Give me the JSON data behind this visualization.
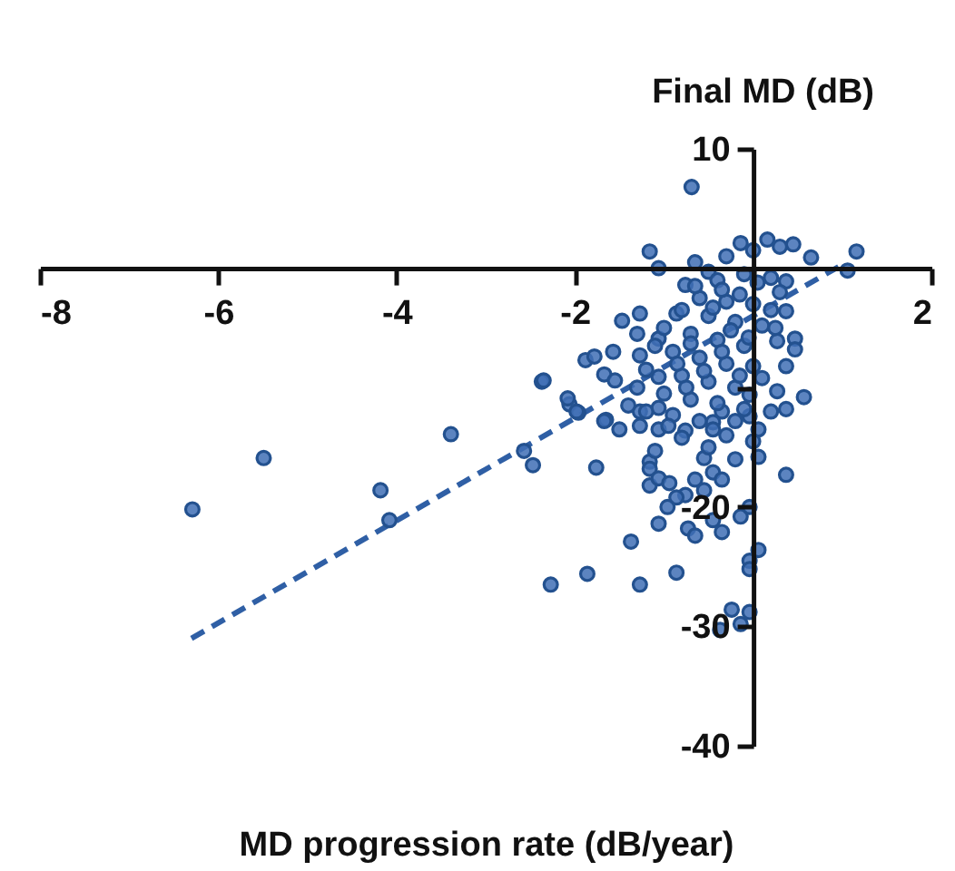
{
  "chart_data": {
    "type": "scatter",
    "xlabel": "MD progression rate (dB/year)",
    "ylabel": "Final MD (dB)",
    "xlim": [
      -8,
      2
    ],
    "ylim": [
      -40,
      10
    ],
    "xticks": [
      -8,
      -6,
      -4,
      -2,
      {
        "value": 0,
        "label": null
      },
      2
    ],
    "yticks": [
      -40,
      -30,
      -20,
      {
        "value": -10,
        "label": null
      },
      {
        "value": 0,
        "label": null
      },
      10
    ],
    "marker": "circle",
    "grid": false,
    "legend": false,
    "series": [
      {
        "color": "#3f6fb5",
        "x": [
          -6.29,
          -5.49,
          -4.18,
          -4.08,
          -3.39,
          -2.57,
          -2.47,
          -2.37,
          -2.27,
          -1.86,
          -1.76,
          -2.06,
          -1.96,
          -1.65,
          -0.69,
          -1.16,
          -1.16,
          -1.16,
          -1.06,
          -0.94,
          -0.55,
          -0.45,
          -0.35,
          -0.65,
          -0.55,
          -0.76,
          -0.86,
          -0.96,
          -1.06,
          -0.73,
          -0.65,
          -0.45,
          -0.35,
          -0.14,
          -0.04,
          0.06,
          0.37,
          -1.37,
          -1.27,
          -0.86,
          0.06,
          -0.04,
          -0.04,
          -0.24,
          -0.14,
          -0.04,
          -0.37,
          -1.16,
          -1.06,
          -0.65,
          -0.14,
          0.16,
          0.45,
          0.65,
          1.16,
          1.06,
          0.37,
          0.37,
          0.27,
          0.47,
          0.47,
          0.37,
          0.57,
          0.37,
          0.27,
          -1.47,
          -1.27,
          -1.88,
          -1.78,
          -1.57,
          -1.67,
          -1.55,
          -2.08,
          -1.98,
          -1.67,
          -2.35,
          -1.27,
          -1.06,
          -0.86,
          -0.76,
          -1.27,
          -1.27,
          -1.06,
          -1.06,
          -1.06,
          -0.76,
          -0.35,
          -0.04,
          -0.04,
          0.06,
          -0.45,
          -0.3,
          0,
          0.3,
          -0.5,
          -0.4,
          -0.1,
          0.2,
          0.3,
          -0.6,
          -0.3,
          0,
          0.2,
          -0.8,
          -0.5,
          -0.2,
          0.1,
          -1,
          -0.7,
          -0.4,
          -0.1,
          -0.9,
          -0.6,
          -0.3,
          0,
          -1.2,
          -0.8,
          -0.5,
          -0.2,
          0.1,
          -1,
          -0.7,
          -0.4,
          -0.1,
          -0.9,
          -0.6,
          -0.3,
          0,
          -0.8,
          -0.5,
          -1.1,
          -0.2,
          -1.3,
          -1.4,
          -1.5,
          -1.1,
          -1.3,
          -0.35,
          -0.15,
          0.05,
          -0.65,
          -0.45,
          -0.25,
          -0.05,
          0.25,
          -0.55,
          -0.35,
          -0.15,
          -0.75,
          -0.95,
          -0.45,
          -0.2,
          0.2,
          -1.2,
          -0.85,
          -0.7
        ],
        "values": [
          -20.2,
          -15.9,
          -18.6,
          -21.1,
          -13.9,
          -15.3,
          -16.5,
          -9.5,
          -26.5,
          -25.6,
          -16.7,
          -11.4,
          -12.1,
          -12.7,
          6.8,
          -16.2,
          -16.8,
          -18.2,
          -17.6,
          -18,
          -15.9,
          -17.1,
          -17.7,
          -17.7,
          -18.6,
          -19,
          -19.2,
          -20,
          -21.4,
          -21.8,
          -22.4,
          -21.1,
          -22.1,
          -20.8,
          -20,
          -15.8,
          -17.3,
          -22.9,
          -26.5,
          -25.5,
          -23.6,
          -24.5,
          -25.2,
          -28.6,
          -29.8,
          -28.8,
          -30.3,
          1.4,
          0,
          0.5,
          2.1,
          2.4,
          2,
          0.9,
          1.4,
          -0.2,
          -1.1,
          -3.6,
          -6.1,
          -5.9,
          -6.8,
          -8.2,
          -10.8,
          -11.8,
          -10.3,
          -4.4,
          -3.8,
          -7.7,
          -7.4,
          -7,
          -8.9,
          -9.4,
          -10.9,
          -12,
          -12.8,
          -9.4,
          -7.3,
          -5.9,
          -3.8,
          -1.4,
          -12,
          -13.2,
          -13.5,
          -11.7,
          -9.1,
          -13.6,
          -12,
          -10.6,
          -12.4,
          -13.5,
          -12.9,
          1,
          1.5,
          1.8,
          -0.3,
          -1,
          -0.5,
          -0.8,
          -2,
          -2.5,
          -2.8,
          -3,
          -3.5,
          -3.5,
          -4,
          -4.5,
          -4.8,
          -5,
          -5.5,
          -6,
          -6.5,
          -7,
          -7.5,
          -8,
          -8.2,
          -8.5,
          -9,
          -9.5,
          -10,
          -9.2,
          -10.5,
          -11,
          -11.3,
          -11.8,
          -12.3,
          -12.8,
          -14,
          -14.5,
          -14.2,
          -15,
          -15.3,
          -16,
          -10,
          -11.5,
          -13.5,
          -6.5,
          -5.5,
          -1.8,
          -2.2,
          -1.2,
          -1.5,
          -3.3,
          -5.2,
          -5.8,
          -5,
          -8.6,
          -7,
          -9,
          -10,
          -13.2,
          -13.5,
          -12.8,
          -12,
          -12,
          -8,
          -6.3
        ]
      },
      {
        "type": "line",
        "color": "#2f5fa5",
        "line_style": "dashed",
        "marker": "none",
        "x": [
          -6.3,
          1
        ],
        "values": [
          -31,
          0.3
        ]
      }
    ]
  }
}
